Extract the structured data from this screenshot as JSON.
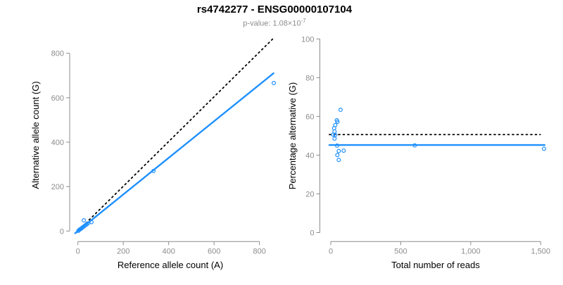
{
  "header": {
    "title": "rs4742277 - ENSG00000107104",
    "subtitle_main": "p-value: 1.08×10",
    "subtitle_exponent": "-7"
  },
  "colors": {
    "accent": "#1e90ff",
    "identity_line": "#000000",
    "axis": "#8c8c8c",
    "tick_label": "#8c8c8c",
    "title": "#000000",
    "subtitle": "#8c8c8c"
  },
  "chart_data": [
    {
      "type": "scatter",
      "xlabel": "Reference allele count (A)",
      "ylabel": "Alternative allele count (G)",
      "xlim": [
        0,
        865
      ],
      "ylim": [
        0,
        865
      ],
      "xticks": [
        0,
        200,
        400,
        600,
        800
      ],
      "xtick_labels": [
        "0",
        "200",
        "400",
        "600",
        "800"
      ],
      "yticks": [
        0,
        200,
        400,
        600,
        800
      ],
      "ytick_labels": [
        "0",
        "200",
        "400",
        "600",
        "800"
      ],
      "grid": false,
      "points": [
        [
          2,
          1
        ],
        [
          6,
          5
        ],
        [
          10,
          8
        ],
        [
          14,
          11
        ],
        [
          18,
          14
        ],
        [
          23,
          18
        ],
        [
          28,
          22
        ],
        [
          33,
          26
        ],
        [
          38,
          30
        ],
        [
          26,
          48
        ],
        [
          44,
          34
        ],
        [
          60,
          40
        ],
        [
          333,
          270
        ],
        [
          863,
          666
        ]
      ],
      "lines": [
        {
          "name": "identity-line",
          "style": "dotted",
          "color": "#000000",
          "from": [
            -8,
            -8
          ],
          "to": [
            858,
            864
          ]
        },
        {
          "name": "fit-line",
          "style": "solid",
          "color": "#1e90ff",
          "from": [
            -12,
            -10
          ],
          "to": [
            862,
            710
          ]
        }
      ]
    },
    {
      "type": "scatter",
      "xlabel": "Total number of reads",
      "ylabel": "Percentage alternative (G)",
      "xlim": [
        0,
        1530
      ],
      "ylim": [
        0,
        100
      ],
      "xticks": [
        0,
        500,
        1000,
        1500
      ],
      "xtick_labels": [
        "0",
        "500",
        "1,000",
        "1,500"
      ],
      "yticks": [
        0,
        20,
        40,
        60,
        80,
        100
      ],
      "ytick_labels": [
        "0",
        "20",
        "40",
        "60",
        "80",
        "100"
      ],
      "grid": false,
      "points": [
        [
          70,
          63.4
        ],
        [
          43,
          58
        ],
        [
          48,
          57.2
        ],
        [
          32,
          55.5
        ],
        [
          24,
          53.9
        ],
        [
          27,
          52.2
        ],
        [
          17,
          50.6
        ],
        [
          32,
          50.4
        ],
        [
          27,
          48.5
        ],
        [
          45,
          44.9
        ],
        [
          92,
          42.3
        ],
        [
          57,
          42.1
        ],
        [
          47,
          40
        ],
        [
          57,
          37.5
        ],
        [
          600,
          45
        ],
        [
          1524,
          43.3
        ]
      ],
      "lines": [
        {
          "name": "expected-percentage-line",
          "style": "dotted",
          "color": "#000000",
          "from": [
            -10,
            50.6
          ],
          "to": [
            1497,
            50.6
          ]
        },
        {
          "name": "observed-percentage-line",
          "style": "solid",
          "color": "#1e90ff",
          "from": [
            -10,
            45.2
          ],
          "to": [
            1528,
            45.2
          ]
        }
      ]
    }
  ]
}
